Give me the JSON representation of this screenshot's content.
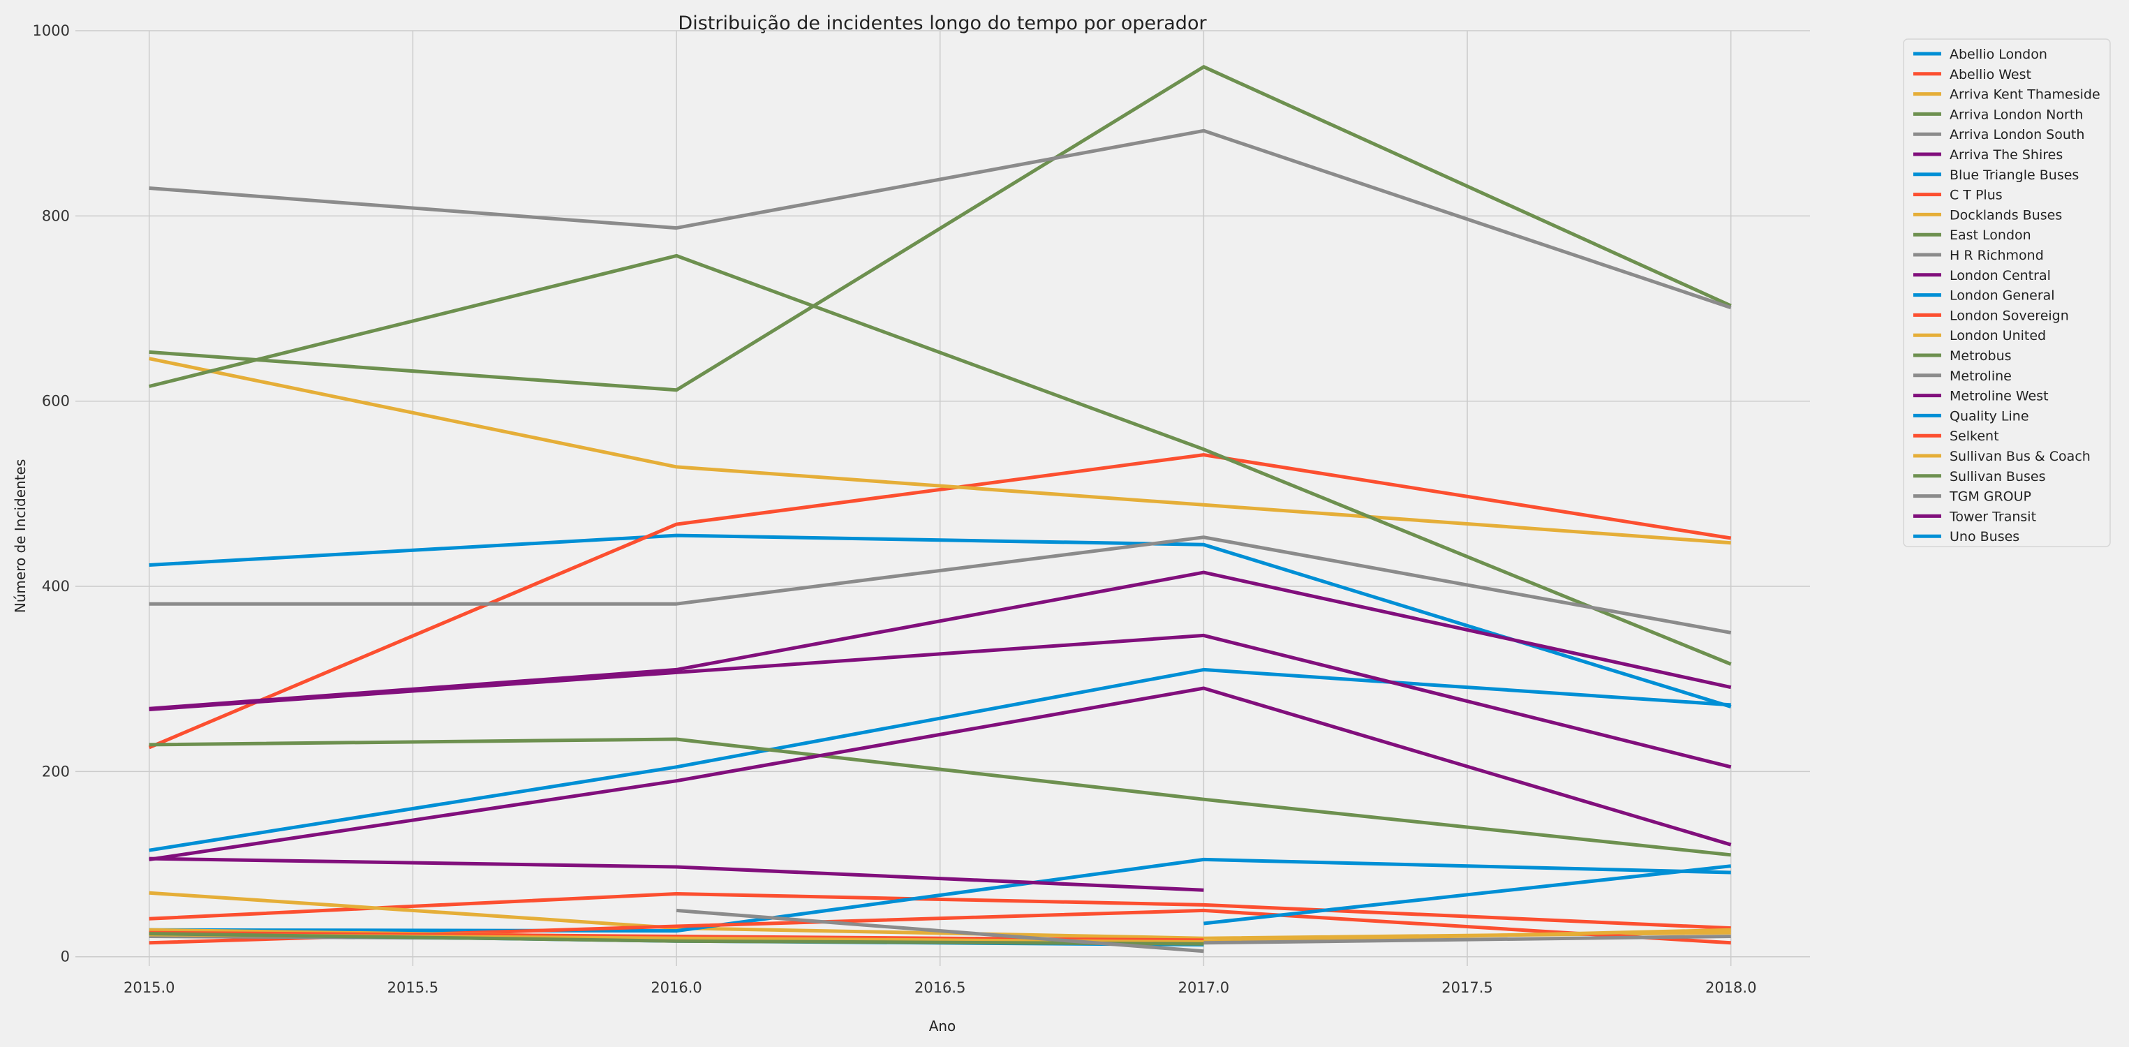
{
  "chart_data": {
    "type": "line",
    "title": "Distribuição de incidentes longo do tempo por operador",
    "xlabel": "Ano",
    "ylabel": "Número de Incidentes",
    "xlim": [
      2014.86,
      2018.15
    ],
    "ylim": [
      -10,
      1000
    ],
    "x_ticks": [
      2015.0,
      2015.5,
      2016.0,
      2016.5,
      2017.0,
      2017.5,
      2018.0
    ],
    "x_tick_labels": [
      "2015.0",
      "2015.5",
      "2016.0",
      "2016.5",
      "2017.0",
      "2017.5",
      "2018.0"
    ],
    "y_ticks": [
      0,
      200,
      400,
      600,
      800,
      1000
    ],
    "y_tick_labels": [
      "0",
      "200",
      "400",
      "600",
      "800",
      "1000"
    ],
    "grid": true,
    "legend_position": "outside-right",
    "series": [
      {
        "name": "Abellio London",
        "color": "#008fd5",
        "points": [
          [
            2015,
            423
          ],
          [
            2016,
            455
          ],
          [
            2017,
            445
          ],
          [
            2018,
            270
          ]
        ]
      },
      {
        "name": "Abellio West",
        "color": "#fc4f30",
        "points": [
          [
            2015,
            226
          ],
          [
            2016,
            467
          ],
          [
            2017,
            542
          ],
          [
            2018,
            452
          ]
        ]
      },
      {
        "name": "Arriva Kent Thameside",
        "color": "#e5ae38",
        "points": [
          [
            2015,
            646
          ],
          [
            2016,
            529
          ],
          [
            2017,
            488
          ],
          [
            2018,
            447
          ]
        ]
      },
      {
        "name": "Arriva London North",
        "color": "#6d904f",
        "points": [
          [
            2015,
            653
          ],
          [
            2016,
            612
          ],
          [
            2017,
            961
          ],
          [
            2018,
            703
          ]
        ]
      },
      {
        "name": "Arriva London South",
        "color": "#8b8b8b",
        "points": [
          [
            2015,
            830
          ],
          [
            2016,
            787
          ],
          [
            2017,
            892
          ],
          [
            2018,
            701
          ]
        ]
      },
      {
        "name": "Arriva The Shires",
        "color": "#810f7c",
        "points": [
          [
            2015,
            268
          ],
          [
            2016,
            310
          ],
          [
            2017,
            415
          ],
          [
            2018,
            291
          ]
        ]
      },
      {
        "name": "Blue Triangle Buses",
        "color": "#008fd5",
        "points": [
          [
            2015,
            115
          ],
          [
            2016,
            205
          ],
          [
            2017,
            310
          ],
          [
            2018,
            272
          ]
        ]
      },
      {
        "name": "C T Plus",
        "color": "#fc4f30",
        "points": [
          [
            2015,
            41
          ],
          [
            2016,
            68
          ],
          [
            2017,
            56
          ],
          [
            2018,
            31
          ]
        ]
      },
      {
        "name": "Docklands Buses",
        "color": "#e5ae38",
        "points": [
          [
            2015,
            69
          ],
          [
            2016,
            31
          ],
          [
            2017,
            20
          ],
          [
            2018,
            26
          ]
        ]
      },
      {
        "name": "East London",
        "color": "#6d904f",
        "points": [
          [
            2015,
            616
          ],
          [
            2016,
            757
          ],
          [
            2017,
            548
          ],
          [
            2018,
            316
          ]
        ]
      },
      {
        "name": "H R Richmond",
        "color": "#8b8b8b",
        "points": [
          [
            2015,
            381
          ],
          [
            2016,
            381
          ],
          [
            2017,
            453
          ],
          [
            2018,
            350
          ]
        ]
      },
      {
        "name": "London Central",
        "color": "#810f7c",
        "points": [
          [
            2015,
            267
          ],
          [
            2016,
            307
          ],
          [
            2017,
            347
          ],
          [
            2018,
            205
          ]
        ]
      },
      {
        "name": "London General",
        "color": "#008fd5",
        "points": [
          [
            2015,
            29
          ],
          [
            2016,
            28
          ],
          [
            2017,
            105
          ],
          [
            2018,
            91
          ]
        ]
      },
      {
        "name": "London Sovereign",
        "color": "#fc4f30",
        "points": [
          [
            2015,
            15
          ],
          [
            2016,
            33
          ],
          [
            2017,
            50
          ],
          [
            2018,
            15
          ]
        ]
      },
      {
        "name": "London United",
        "color": "#e5ae38",
        "points": [
          [
            2015,
            29
          ],
          [
            2016,
            21
          ],
          [
            2017,
            16
          ],
          [
            2018,
            29
          ]
        ]
      },
      {
        "name": "Metrobus",
        "color": "#6d904f",
        "points": [
          [
            2015,
            229
          ],
          [
            2016,
            235
          ],
          [
            2017,
            170
          ],
          [
            2018,
            110
          ]
        ]
      },
      {
        "name": "Metroline",
        "color": "#8b8b8b",
        "points": [
          [
            2015,
            22
          ],
          [
            2016,
            19
          ],
          [
            2017,
            15
          ],
          [
            2018,
            22
          ]
        ]
      },
      {
        "name": "Metroline West",
        "color": "#810f7c",
        "points": [
          [
            2015,
            105
          ],
          [
            2016,
            190
          ],
          [
            2017,
            290
          ],
          [
            2018,
            121
          ]
        ]
      },
      {
        "name": "Quality Line",
        "color": "#008fd5",
        "points": [
          [
            2015,
            25
          ],
          [
            2016,
            17
          ],
          [
            2017,
            13
          ]
        ]
      },
      {
        "name": "Selkent",
        "color": "#fc4f30",
        "points": [
          [
            2015,
            26
          ],
          [
            2016,
            22
          ],
          [
            2017,
            18
          ]
        ]
      },
      {
        "name": "Sullivan Bus & Coach",
        "color": "#e5ae38",
        "points": [
          [
            2015,
            24
          ],
          [
            2016,
            20
          ],
          [
            2017,
            16
          ]
        ]
      },
      {
        "name": "Sullivan Buses",
        "color": "#6d904f",
        "points": [
          [
            2015,
            25
          ],
          [
            2016,
            17
          ],
          [
            2017,
            14
          ]
        ]
      },
      {
        "name": "TGM GROUP",
        "color": "#8b8b8b",
        "points": [
          [
            2016,
            50
          ],
          [
            2017,
            6
          ]
        ]
      },
      {
        "name": "Tower Transit",
        "color": "#810f7c",
        "points": [
          [
            2015,
            106
          ],
          [
            2016,
            97
          ],
          [
            2017,
            72
          ]
        ]
      },
      {
        "name": "Uno Buses",
        "color": "#008fd5",
        "points": [
          [
            2017,
            36
          ],
          [
            2018,
            98
          ]
        ]
      }
    ]
  }
}
